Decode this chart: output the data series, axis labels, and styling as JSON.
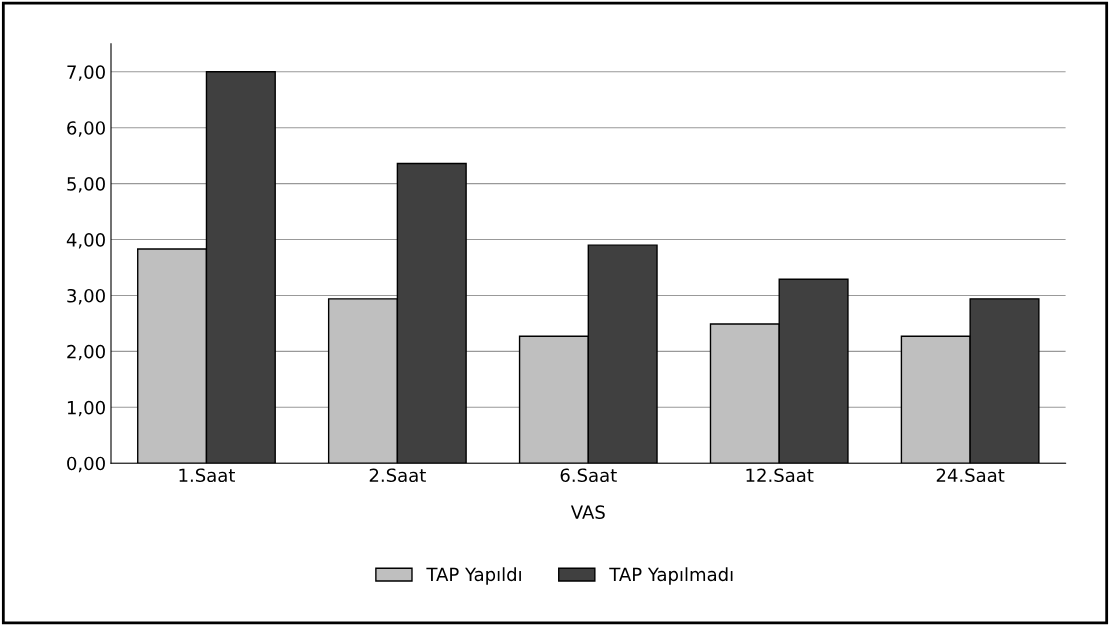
{
  "chart_data": {
    "type": "bar",
    "xlabel": "VAS",
    "categories": [
      "1.Saat",
      "2.Saat",
      "6.Saat",
      "12.Saat",
      "24.Saat"
    ],
    "series": [
      {
        "name": "TAP Yapıldı",
        "color": "#bfbfbf",
        "values": [
          3.83,
          2.94,
          2.27,
          2.49,
          2.27
        ]
      },
      {
        "name": "TAP Yapılmadı",
        "color": "#404040",
        "values": [
          7.0,
          5.36,
          3.9,
          3.29,
          2.94
        ]
      }
    ],
    "ylim": [
      0,
      7.5
    ],
    "yticks": [
      {
        "value": 0,
        "label": "0,00"
      },
      {
        "value": 1,
        "label": "1,00"
      },
      {
        "value": 2,
        "label": "2,00"
      },
      {
        "value": 3,
        "label": "3,00"
      },
      {
        "value": 4,
        "label": "4,00"
      },
      {
        "value": 5,
        "label": "5,00"
      },
      {
        "value": 6,
        "label": "6,00"
      },
      {
        "value": 7,
        "label": "7,00"
      }
    ],
    "grid": "y",
    "legend": "bottom"
  }
}
